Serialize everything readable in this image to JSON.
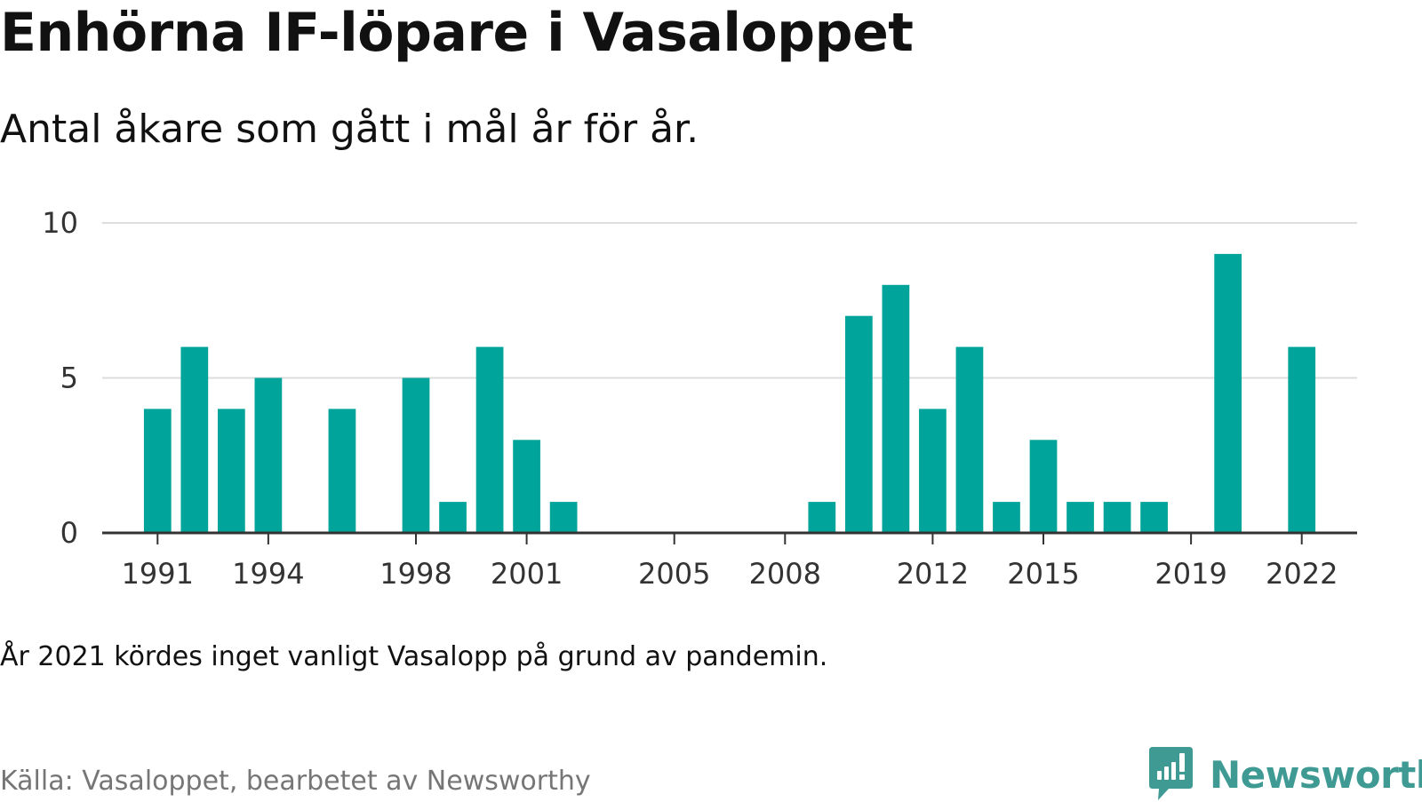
{
  "title": "Enhörna IF-löpare i Vasaloppet",
  "subtitle": "Antal åkare som gått i mål år för år.",
  "note": "År 2021 kördes inget vanligt Vasalopp på grund av pandemin.",
  "source": "Källa: Vasaloppet, bearbetet av Newsworthy",
  "logo": {
    "text": "Newsworthy",
    "icon": "newsworthy-logo-icon"
  },
  "colors": {
    "bar": "#00a49a",
    "grid": "#dddddd",
    "axis": "#333333",
    "logo": "#3f9a94"
  },
  "chart_data": {
    "type": "bar",
    "title": "Enhörna IF-löpare i Vasaloppet",
    "subtitle": "Antal åkare som gått i mål år för år.",
    "xlabel": "",
    "ylabel": "",
    "x": [
      1991,
      1992,
      1993,
      1994,
      1995,
      1996,
      1997,
      1998,
      1999,
      2000,
      2001,
      2002,
      2003,
      2004,
      2005,
      2006,
      2007,
      2008,
      2009,
      2010,
      2011,
      2012,
      2013,
      2014,
      2015,
      2016,
      2017,
      2018,
      2019,
      2020,
      2021,
      2022
    ],
    "values": [
      4,
      6,
      4,
      5,
      0,
      4,
      0,
      5,
      1,
      6,
      3,
      1,
      0,
      0,
      0,
      0,
      0,
      0,
      1,
      7,
      8,
      4,
      6,
      1,
      3,
      1,
      1,
      1,
      0,
      9,
      0,
      6
    ],
    "x_ticks": [
      "1991",
      "1994",
      "1998",
      "2001",
      "2005",
      "2008",
      "2012",
      "2015",
      "2019",
      "2022"
    ],
    "y_ticks": [
      "0",
      "5",
      "10"
    ],
    "ylim": [
      0,
      10
    ],
    "xlim": [
      1989.5,
      2023.5
    ],
    "grid": true,
    "legend": "none"
  }
}
